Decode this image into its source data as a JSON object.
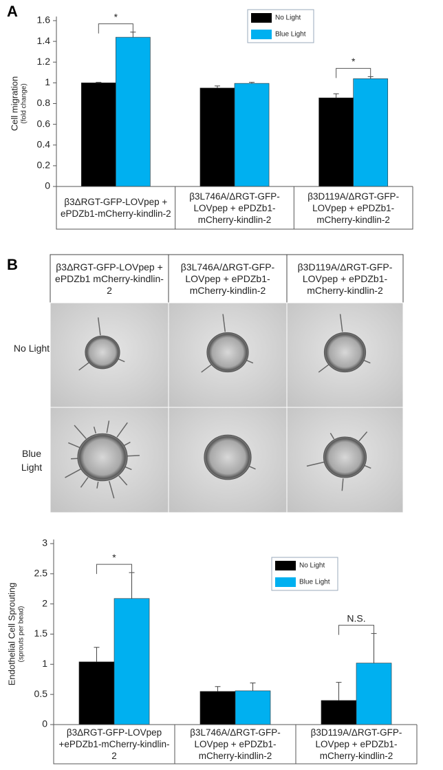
{
  "panel_labels": [
    "A",
    "B"
  ],
  "chart_data": [
    {
      "type": "bar",
      "y_label": "Cell migration",
      "y_sublabel": "(fold change)",
      "categories": [
        "β3ΔRGT-GFP-LOVpep + ePDZb1-mCherry-kindlin-2",
        "β3L746A/ΔRGT-GFP-LOVpep + ePDZb1-mCherry-kindlin-2",
        "β3D119A/ΔRGT-GFP-LOVpep + ePDZb1-mCherry-kindlin-2"
      ],
      "series": [
        {
          "name": "No Light",
          "color": "#000000",
          "values": [
            1.0,
            0.95,
            0.855
          ],
          "errors": [
            0.005,
            0.02,
            0.04
          ]
        },
        {
          "name": "Blue Light",
          "color": "#00b0f0",
          "values": [
            1.44,
            0.995,
            1.04
          ],
          "errors": [
            0.05,
            0.01,
            0.02
          ]
        }
      ],
      "significance": [
        "*",
        null,
        "*"
      ],
      "ylim": [
        0,
        1.6
      ],
      "yticks": [
        0,
        0.2,
        0.4,
        0.6,
        0.8,
        1,
        1.2,
        1.4,
        1.6
      ],
      "legend": "upper right"
    },
    {
      "type": "bar",
      "y_label": "Endothelial Cell Sprouting",
      "y_sublabel": "(sprouts per bead)",
      "categories": [
        "β3ΔRGT-GFP-LOVpep +ePDZb1-mCherry-kindlin-2",
        "β3L746A/ΔRGT-GFP-LOVpep + ePDZb1-mCherry-kindlin-2",
        "β3D119A/ΔRGT-GFP-LOVpep + ePDZb1-mCherry-kindlin-2"
      ],
      "series": [
        {
          "name": "No Light",
          "color": "#000000",
          "values": [
            1.04,
            0.55,
            0.4
          ],
          "errors": [
            0.24,
            0.08,
            0.3
          ]
        },
        {
          "name": "Blue Light",
          "color": "#00b0f0",
          "values": [
            2.09,
            0.56,
            1.02
          ],
          "errors": [
            0.43,
            0.13,
            0.49
          ]
        }
      ],
      "significance": [
        "*",
        null,
        "N.S."
      ],
      "ylim": [
        0,
        3
      ],
      "yticks": [
        0,
        0.5,
        1,
        1.5,
        2,
        2.5,
        3
      ],
      "legend": "upper right"
    }
  ],
  "image_grid": {
    "column_headers": [
      "β3ΔRGT-GFP-LOVpep + ePDZb1 mCherry-kindlin-2",
      "β3L746A/ΔRGT-GFP-LOVpep + ePDZb1-mCherry-kindlin-2",
      "β3D119A/ΔRGT-GFP-LOVpep + ePDZb1-mCherry-kindlin-2"
    ],
    "row_labels": [
      "No Light",
      "Blue Light"
    ]
  }
}
